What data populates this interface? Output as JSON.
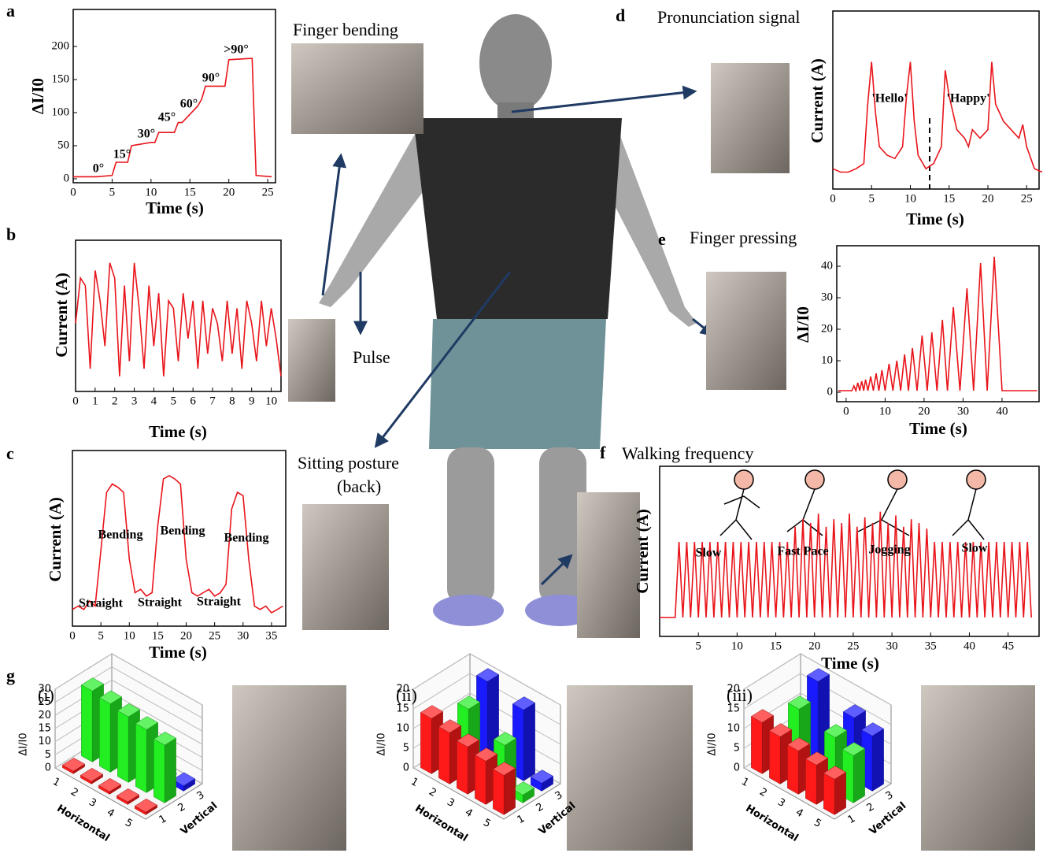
{
  "panel_labels": [
    "a",
    "b",
    "c",
    "d",
    "e",
    "f",
    "g"
  ],
  "captions": {
    "finger_bending": "Finger bending",
    "pulse": "Pulse",
    "sitting_1": "Sitting posture",
    "sitting_2": "(back)"
  },
  "chart_data": [
    {
      "type": "line",
      "xlabel": "Time (s)",
      "ylabel": "ΔI/I0",
      "color": "#e8151b",
      "x": [
        0,
        3,
        5,
        5.5,
        7,
        7.5,
        10,
        10.5,
        11,
        13,
        13.5,
        14,
        16,
        16.5,
        17,
        19.5,
        20,
        23,
        23.5,
        25.5
      ],
      "values": [
        3,
        3,
        5,
        25,
        25,
        50,
        55,
        55,
        70,
        70,
        85,
        85,
        110,
        120,
        140,
        140,
        180,
        182,
        5,
        3
      ],
      "xlim": [
        0,
        26
      ],
      "ylim": [
        -6,
        256
      ],
      "xticks": [
        0,
        5,
        10,
        15,
        20,
        25
      ],
      "yticks": [
        0,
        50,
        100,
        150,
        200
      ],
      "annotations": [
        "0°",
        "15°",
        "30°",
        "45°",
        "60°",
        "90°",
        ">90°"
      ]
    },
    {
      "type": "line",
      "xlabel": "Time (s)",
      "ylabel": "Current (A)",
      "color": "#e8151b",
      "x": [
        0,
        0.25,
        0.5,
        0.75,
        1,
        1.25,
        1.5,
        1.75,
        2,
        2.25,
        2.5,
        2.75,
        3,
        3.25,
        3.5,
        3.75,
        4,
        4.25,
        4.5,
        4.75,
        5,
        5.25,
        5.5,
        5.75,
        6,
        6.25,
        6.5,
        6.75,
        7,
        7.25,
        7.5,
        7.75,
        8,
        8.25,
        8.5,
        8.75,
        9,
        9.25,
        9.5,
        9.75,
        10,
        10.25,
        10.5
      ],
      "values": [
        0.45,
        0.75,
        0.7,
        0.15,
        0.8,
        0.6,
        0.3,
        0.85,
        0.75,
        0.1,
        0.7,
        0.2,
        0.85,
        0.55,
        0.15,
        0.7,
        0.3,
        0.65,
        0.1,
        0.6,
        0.55,
        0.2,
        0.65,
        0.35,
        0.6,
        0.15,
        0.6,
        0.25,
        0.55,
        0.45,
        0.2,
        0.6,
        0.25,
        0.55,
        0.15,
        0.6,
        0.45,
        0.2,
        0.6,
        0.3,
        0.55,
        0.35,
        0.1
      ],
      "xlim": [
        0,
        10.5
      ],
      "ylim": [
        0,
        1
      ],
      "xticks": [
        0,
        1,
        2,
        3,
        4,
        5,
        6,
        7,
        8,
        9,
        10
      ]
    },
    {
      "type": "line",
      "xlabel": "Time (s)",
      "ylabel": "Current (A)",
      "color": "#e8151b",
      "x": [
        0,
        1,
        2,
        3,
        4,
        5,
        6,
        7,
        8,
        9,
        10,
        11,
        12,
        13,
        14,
        15,
        16,
        17,
        18,
        19,
        20,
        21,
        22,
        23,
        24,
        25,
        26,
        27,
        28,
        29,
        30,
        31,
        32,
        33,
        34,
        35,
        36,
        37
      ],
      "values": [
        0.1,
        0.12,
        0.1,
        0.15,
        0.12,
        0.45,
        0.8,
        0.85,
        0.83,
        0.8,
        0.4,
        0.2,
        0.22,
        0.18,
        0.2,
        0.6,
        0.88,
        0.9,
        0.88,
        0.85,
        0.4,
        0.2,
        0.18,
        0.2,
        0.22,
        0.18,
        0.2,
        0.25,
        0.7,
        0.8,
        0.78,
        0.4,
        0.12,
        0.1,
        0.12,
        0.08,
        0.1,
        0.12
      ],
      "xlim": [
        0,
        37.5
      ],
      "ylim": [
        0,
        1.05
      ],
      "xticks": [
        0,
        5,
        10,
        15,
        20,
        25,
        30,
        35
      ],
      "annotations": [
        "Bending",
        "Bending",
        "Bending",
        "Straight",
        "Straight",
        "Straight"
      ]
    },
    {
      "type": "line",
      "title": "Pronunciation signal",
      "xlabel": "Time (s)",
      "ylabel": "Current (A)",
      "color": "#e8151b",
      "x": [
        0,
        1,
        2,
        3,
        4,
        4.5,
        5,
        5.5,
        6,
        7,
        8,
        9,
        9.5,
        10,
        10.5,
        11,
        12,
        13,
        14,
        14.5,
        15,
        16,
        17,
        17.5,
        18,
        19,
        20,
        20.5,
        21,
        21.5,
        22,
        23,
        24,
        24.5,
        25,
        26,
        27
      ],
      "values": [
        0.12,
        0.1,
        0.1,
        0.12,
        0.15,
        0.5,
        0.75,
        0.45,
        0.25,
        0.2,
        0.18,
        0.25,
        0.55,
        0.75,
        0.4,
        0.2,
        0.12,
        0.15,
        0.25,
        0.7,
        0.55,
        0.35,
        0.3,
        0.25,
        0.35,
        0.3,
        0.35,
        0.75,
        0.5,
        0.45,
        0.4,
        0.35,
        0.3,
        0.38,
        0.25,
        0.12,
        0.1
      ],
      "xlim": [
        0,
        26.6
      ],
      "ylim": [
        0,
        1.05
      ],
      "xticks": [
        0,
        5,
        10,
        15,
        20,
        25
      ],
      "annotations": [
        "'Hello'",
        "'Happy'"
      ]
    },
    {
      "type": "line",
      "title": "Finger pressing",
      "xlabel": "Time (s)",
      "ylabel": "ΔI/I0",
      "color": "#e8151b",
      "x": [
        -2,
        1.5,
        2,
        2.5,
        3,
        3.5,
        4,
        4.5,
        5,
        5.6,
        6.3,
        7,
        7.7,
        8.4,
        9.2,
        10,
        11,
        12,
        13,
        14,
        15,
        16,
        17,
        18.2,
        19.5,
        20.8,
        22,
        23.3,
        24.7,
        26,
        27.5,
        29.2,
        31,
        32.7,
        34.5,
        36.2,
        38,
        40,
        49
      ],
      "values": [
        0.5,
        0.5,
        2,
        0.5,
        3,
        0.5,
        3.5,
        0.5,
        4,
        0.5,
        5,
        0.5,
        6,
        0.5,
        7,
        0.5,
        9,
        0.5,
        10,
        0.5,
        12,
        0.5,
        14,
        0.5,
        18,
        0.5,
        19,
        0.5,
        23,
        0.5,
        27,
        0.5,
        33,
        0.5,
        41,
        0.5,
        43,
        0.5,
        0.5
      ],
      "xlim": [
        -2.4,
        49.5
      ],
      "ylim": [
        -3,
        46.5
      ],
      "xticks": [
        0,
        10,
        20,
        30,
        40
      ],
      "yticks": [
        0,
        10,
        20,
        30,
        40
      ]
    },
    {
      "type": "line",
      "title": "Walking frequency",
      "xlabel": "Time (s)",
      "ylabel": "Current (A)",
      "color": "#e8151b",
      "x": [
        0,
        2,
        2.5,
        3,
        3.5,
        4,
        4.5,
        5,
        5.5,
        6,
        6.5,
        7,
        7.5,
        8,
        8.5,
        9,
        9.5,
        10,
        10.5,
        11,
        11.5,
        12,
        12.5,
        13,
        13.5,
        14,
        14.5,
        15,
        15.5,
        16,
        16.5,
        17,
        17.5,
        18,
        18.5,
        19,
        19.5,
        20,
        20.5,
        21,
        21.5,
        22,
        22.5,
        23,
        23.5,
        24,
        24.5,
        25,
        25.5,
        26,
        26.5,
        27,
        27.5,
        28,
        28.5,
        29,
        29.5,
        30,
        30.5,
        31,
        31.5,
        32,
        32.5,
        33,
        33.5,
        34,
        34.5,
        35,
        35.5,
        36,
        36.5,
        37,
        37.5,
        38,
        38.5,
        39,
        39.5,
        40,
        40.5,
        41,
        41.5,
        42,
        42.5,
        43,
        43.5,
        44,
        44.5,
        45,
        45.5,
        46,
        46.5,
        47,
        47.5,
        48
      ],
      "values": [
        0.1,
        0.1,
        0.5,
        0.1,
        0.5,
        0.1,
        0.5,
        0.1,
        0.5,
        0.1,
        0.5,
        0.1,
        0.5,
        0.1,
        0.5,
        0.1,
        0.5,
        0.1,
        0.5,
        0.1,
        0.5,
        0.1,
        0.5,
        0.1,
        0.5,
        0.1,
        0.5,
        0.1,
        0.5,
        0.1,
        0.5,
        0.1,
        0.58,
        0.1,
        0.62,
        0.1,
        0.6,
        0.1,
        0.65,
        0.1,
        0.58,
        0.1,
        0.62,
        0.1,
        0.6,
        0.1,
        0.65,
        0.1,
        0.58,
        0.1,
        0.63,
        0.1,
        0.6,
        0.1,
        0.66,
        0.1,
        0.6,
        0.1,
        0.64,
        0.1,
        0.58,
        0.1,
        0.62,
        0.1,
        0.6,
        0.1,
        0.57,
        0.1,
        0.5,
        0.1,
        0.5,
        0.1,
        0.5,
        0.1,
        0.5,
        0.1,
        0.5,
        0.1,
        0.5,
        0.1,
        0.5,
        0.1,
        0.5,
        0.1,
        0.5,
        0.1,
        0.5,
        0.1,
        0.5,
        0.1,
        0.5,
        0.1,
        0.5,
        0.1
      ],
      "xlim": [
        0,
        49
      ],
      "ylim": [
        0,
        0.9
      ],
      "xticks": [
        5,
        10,
        15,
        20,
        25,
        30,
        35,
        40,
        45
      ],
      "annotations": [
        "Slow",
        "Fast Pace",
        "Jogging",
        "Slow"
      ]
    },
    {
      "type": "bar3d",
      "label": "(i)",
      "xlabel": "Horizontal",
      "ylabel": "Vertical",
      "zlabel": "ΔI/I0",
      "categories": [
        "1",
        "2",
        "3",
        "4",
        "5"
      ],
      "vcategories": [
        "1",
        "2",
        "3"
      ],
      "series": [
        {
          "color": "#ff1a1a",
          "values": [
            1,
            1,
            1,
            1,
            1
          ]
        },
        {
          "color": "#22ee22",
          "values": [
            27,
            26,
            25,
            24,
            22
          ]
        },
        {
          "color": "#1a1aff",
          "values": [
            0,
            0,
            0,
            0,
            2
          ]
        }
      ],
      "zlim": [
        0,
        30
      ],
      "zticks": [
        0,
        5,
        10,
        15,
        20,
        25,
        30
      ]
    },
    {
      "type": "bar3d",
      "label": "(ii)",
      "xlabel": "Horizontal",
      "ylabel": "Vertical",
      "zlabel": "ΔI/I0",
      "categories": [
        "1",
        "2",
        "3",
        "4",
        "5"
      ],
      "vcategories": [
        "1",
        "2",
        "3"
      ],
      "series": [
        {
          "color": "#ff1a1a",
          "values": [
            14,
            13,
            12,
            11,
            10
          ]
        },
        {
          "color": "#22ee22",
          "values": [
            0,
            16,
            0,
            12,
            2
          ]
        },
        {
          "color": "#1a1aff",
          "values": [
            0,
            20,
            0,
            18,
            2
          ]
        }
      ],
      "zlim": [
        0,
        20
      ],
      "zticks": [
        0,
        5,
        10,
        15,
        20
      ]
    },
    {
      "type": "bar3d",
      "label": "(iii)",
      "xlabel": "Horizontal",
      "ylabel": "Vertical",
      "zlabel": "ΔI/I0",
      "categories": [
        "1",
        "2",
        "3",
        "4",
        "5"
      ],
      "vcategories": [
        "1",
        "2",
        "3"
      ],
      "series": [
        {
          "color": "#ff1a1a",
          "values": [
            13,
            12,
            11,
            10,
            9
          ]
        },
        {
          "color": "#22ee22",
          "values": [
            0,
            16,
            0,
            14,
            12
          ]
        },
        {
          "color": "#1a1aff",
          "values": [
            0,
            20,
            0,
            16,
            14
          ]
        }
      ],
      "zlim": [
        0,
        20
      ],
      "zticks": [
        0,
        5,
        10,
        15,
        20
      ]
    }
  ]
}
